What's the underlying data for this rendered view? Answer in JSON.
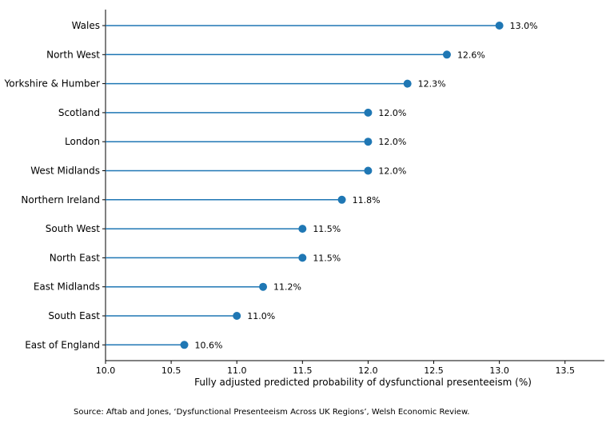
{
  "chart_data": {
    "type": "lollipop",
    "orientation": "horizontal",
    "categories": [
      "Wales",
      "North West",
      "Yorkshire & Humber",
      "Scotland",
      "London",
      "West Midlands",
      "Northern Ireland",
      "South West",
      "North East",
      "East Midlands",
      "South East",
      "East of England"
    ],
    "values": [
      13.0,
      12.6,
      12.3,
      12.0,
      12.0,
      12.0,
      11.8,
      11.5,
      11.5,
      11.2,
      11.0,
      10.6
    ],
    "value_labels": [
      "13.0%",
      "12.6%",
      "12.3%",
      "12.0%",
      "12.0%",
      "12.0%",
      "11.8%",
      "11.5%",
      "11.5%",
      "11.2%",
      "11.0%",
      "10.6%"
    ],
    "xlabel": "Fully adjusted predicted probability of dysfunctional presenteeism (%)",
    "ylabel": "",
    "xlim": [
      10.0,
      13.8
    ],
    "xticks": [
      10.0,
      10.5,
      11.0,
      11.5,
      12.0,
      12.5,
      13.0,
      13.5
    ],
    "xtick_labels": [
      "10.0",
      "10.5",
      "11.0",
      "11.5",
      "12.0",
      "12.5",
      "13.0",
      "13.5"
    ],
    "grid": false,
    "color": "#1f77b4"
  },
  "source": "Source: Aftab and Jones, ‘Dysfunctional Presenteeism Across UK Regions’, Welsh Economic Review."
}
